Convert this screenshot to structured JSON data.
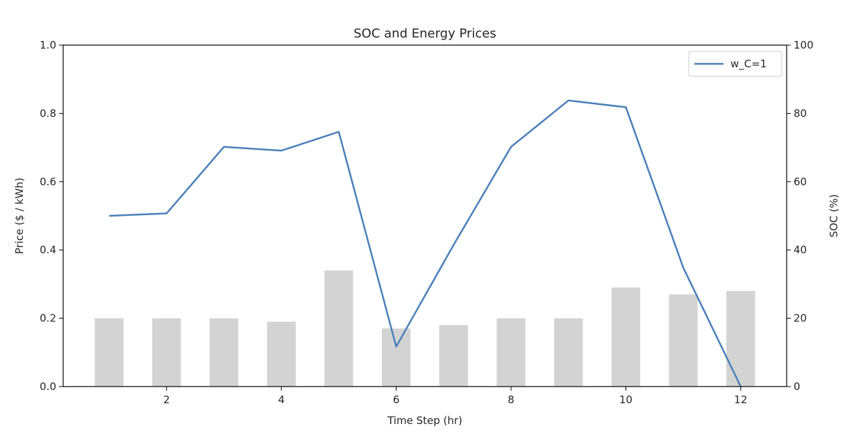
{
  "chart_data": {
    "type": "bar+line",
    "title": "SOC and Energy Prices",
    "xlabel": "Time Step (hr)",
    "ylabel_left": "Price ($ / kWh)",
    "ylabel_right": "SOC (%)",
    "xlim": [
      0.2,
      12.8
    ],
    "ylim_left": [
      0,
      1.0
    ],
    "ylim_right": [
      0,
      100
    ],
    "x_ticks": [
      2,
      4,
      6,
      8,
      10,
      12
    ],
    "y_ticks_left": [
      "0.0",
      "0.2",
      "0.4",
      "0.6",
      "0.8",
      "1.0"
    ],
    "y_ticks_right": [
      "0",
      "20",
      "40",
      "60",
      "80",
      "100"
    ],
    "grid": false,
    "legend_position": "top-right",
    "bars": {
      "axis": "left",
      "color": "#d3d3d3",
      "x": [
        1,
        2,
        3,
        4,
        5,
        6,
        7,
        8,
        9,
        10,
        11,
        12
      ],
      "values": [
        0.2,
        0.2,
        0.2,
        0.19,
        0.34,
        0.17,
        0.18,
        0.2,
        0.2,
        0.29,
        0.27,
        0.28
      ]
    },
    "series": [
      {
        "name": "w_C=1",
        "axis": "right",
        "color": "#4a7fb8",
        "x": [
          1,
          2,
          3,
          4,
          5,
          6,
          7,
          8,
          9,
          10,
          11,
          12
        ],
        "values": [
          50,
          50.7,
          70.2,
          69.1,
          74.6,
          11.7,
          41.5,
          70.2,
          83.8,
          81.8,
          34.8,
          0
        ]
      }
    ]
  }
}
